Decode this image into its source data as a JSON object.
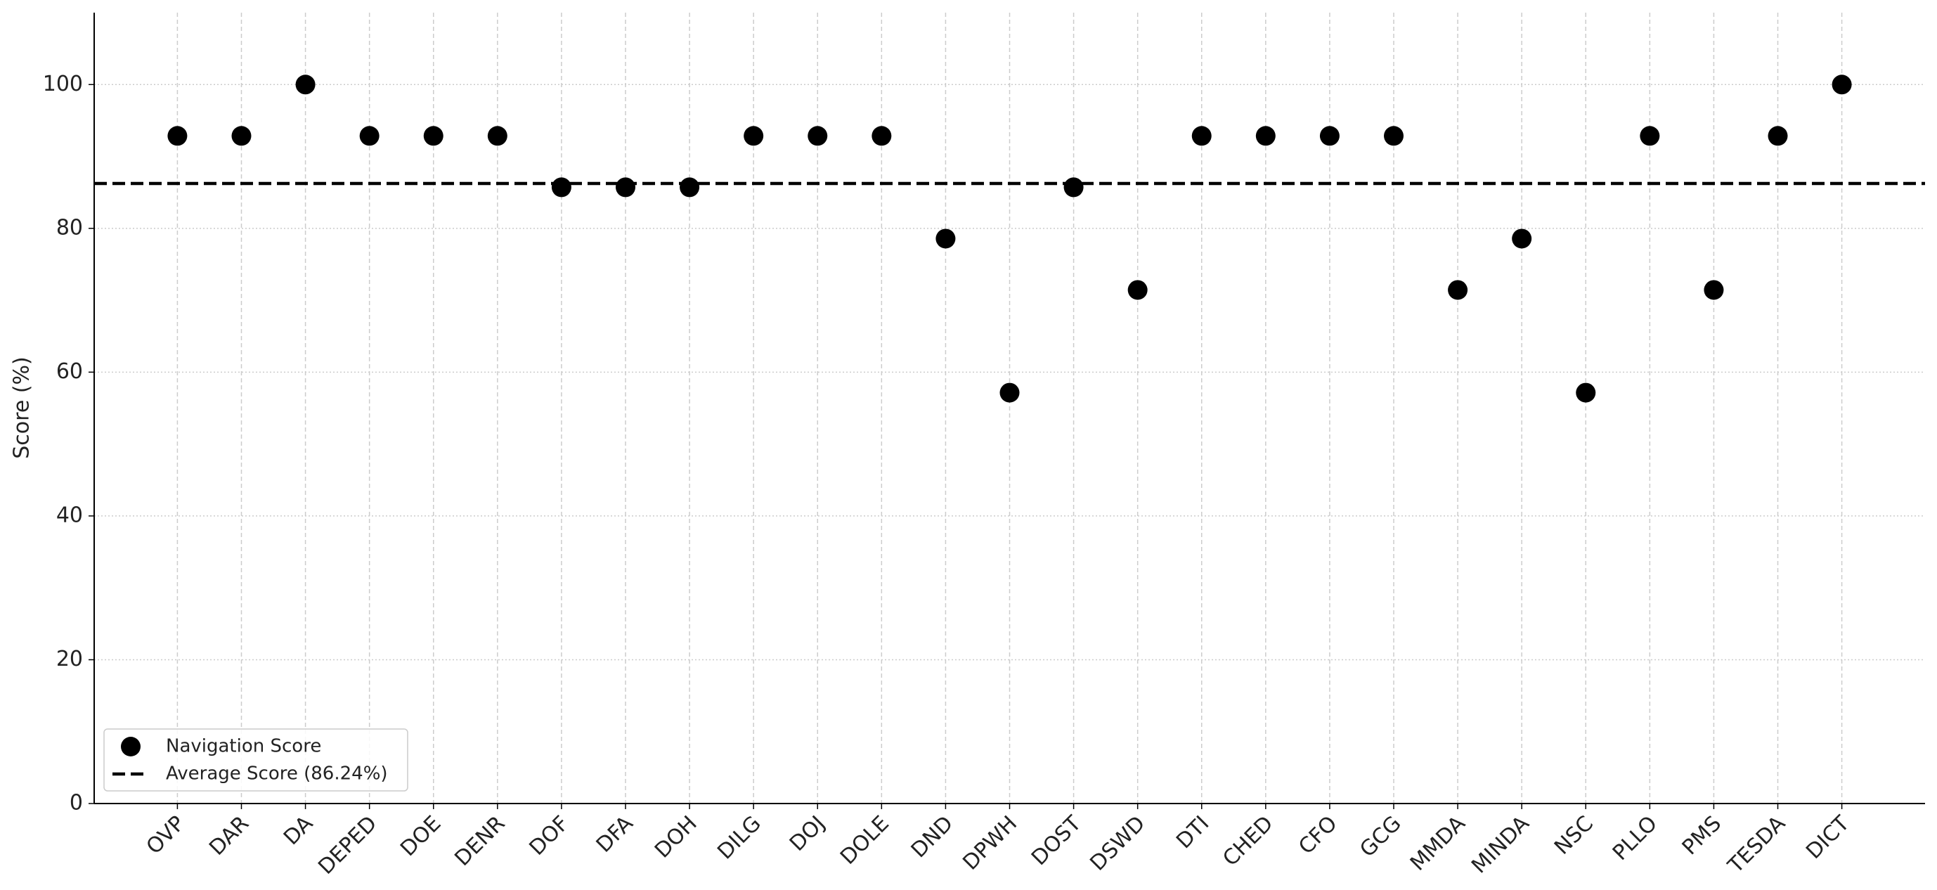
{
  "chart_data": {
    "type": "scatter",
    "y_label": "Score (%)",
    "categories": [
      "OVP",
      "DAR",
      "DA",
      "DEPED",
      "DOE",
      "DENR",
      "DOF",
      "DFA",
      "DOH",
      "DILG",
      "DOJ",
      "DOLE",
      "DND",
      "DPWH",
      "DOST",
      "DSWD",
      "DTI",
      "CHED",
      "CFO",
      "GCG",
      "MMDA",
      "MINDA",
      "NSC",
      "PLLO",
      "PMS",
      "TESDA",
      "DICT"
    ],
    "series": [
      {
        "name": "Navigation Score",
        "color": "#000000",
        "values": [
          92.86,
          92.86,
          100,
          92.86,
          92.86,
          92.86,
          85.71,
          85.71,
          85.71,
          92.86,
          92.86,
          92.86,
          78.57,
          57.14,
          85.71,
          71.43,
          92.86,
          92.86,
          92.86,
          92.86,
          71.43,
          78.57,
          57.14,
          92.86,
          71.43,
          92.86,
          100
        ]
      }
    ],
    "average": {
      "name": "Average Score (86.24%)",
      "value": 86.24,
      "color": "#000000"
    },
    "ylim": [
      0,
      110
    ],
    "yticks": [
      0,
      20,
      40,
      60,
      80,
      100
    ],
    "grid": true,
    "legend": "lower left"
  }
}
